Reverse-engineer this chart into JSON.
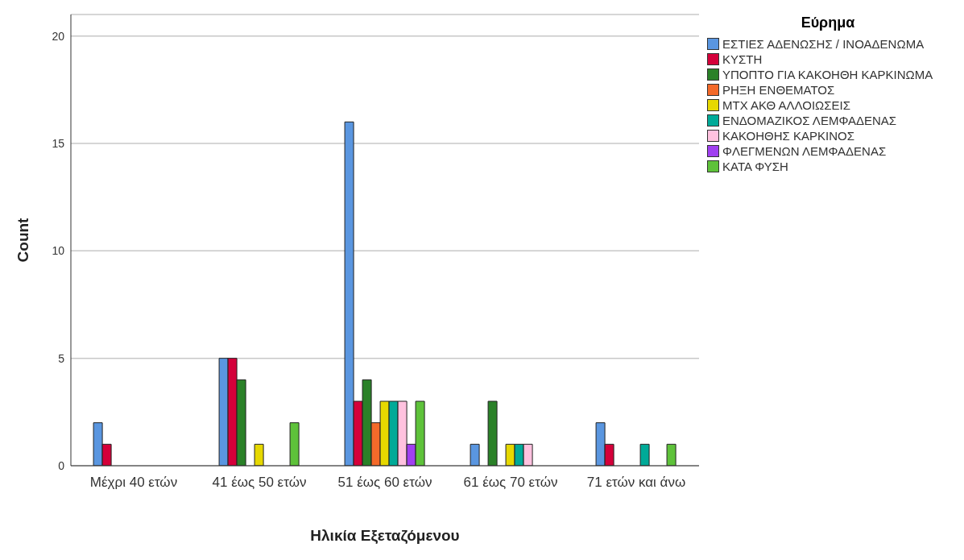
{
  "chart_data": {
    "type": "bar",
    "xlabel": "Ηλικία Εξεταζόμενου",
    "ylabel": "Count",
    "legend_title": "Εύρημα",
    "categories": [
      "Μέχρι 40 ετών",
      "41 έως 50 ετών",
      "51 έως 60 ετών",
      "61 έως 70 ετών",
      "71 ετών και άνω"
    ],
    "series": [
      {
        "name": "ΕΣΤΙΕΣ ΑΔΕΝΩΣΗΣ / ΙΝΟΑΔΕΝΩΜΑ",
        "color": "#5a96e0",
        "values": [
          2,
          5,
          16,
          1,
          2
        ]
      },
      {
        "name": "ΚΥΣΤΗ",
        "color": "#d4003a",
        "values": [
          1,
          5,
          3,
          0,
          1
        ]
      },
      {
        "name": "ΥΠΟΠΤΟ ΓΙΑ ΚΑΚΟΗΘΗ ΚΑΡΚΙΝΩΜΑ",
        "color": "#2a8128",
        "values": [
          0,
          4,
          4,
          3,
          0
        ]
      },
      {
        "name": "ΡΗΞΗ ΕΝΘΕΜΑΤΟΣ",
        "color": "#f46a2a",
        "values": [
          0,
          0,
          2,
          0,
          0
        ]
      },
      {
        "name": "ΜΤΧ ΑΚΘ ΑΛΛΟΙΩΣΕΙΣ",
        "color": "#e6d800",
        "values": [
          0,
          1,
          3,
          1,
          0
        ]
      },
      {
        "name": "ΕΝΔΟΜΑΖΙΚΟΣ ΛΕΜΦΑΔΕΝΑΣ",
        "color": "#00aa98",
        "values": [
          0,
          0,
          3,
          1,
          1
        ]
      },
      {
        "name": "ΚΑΚΟΗΘΗΣ ΚΑΡΚΙΝΟΣ",
        "color": "#ffc2df",
        "values": [
          0,
          0,
          3,
          1,
          0
        ]
      },
      {
        "name": "ΦΛΕΓΜΕΝΩΝ ΛΕΜΦΑΔΕΝΑΣ",
        "color": "#a040f0",
        "values": [
          0,
          0,
          1,
          0,
          0
        ]
      },
      {
        "name": "ΚΑΤΑ ΦΥΣΗ",
        "color": "#5ec23a",
        "values": [
          0,
          2,
          3,
          0,
          1
        ]
      }
    ],
    "ylim": [
      0,
      21
    ],
    "yticks": [
      0,
      5,
      10,
      15,
      20
    ],
    "grid": "y",
    "legend": "right"
  }
}
